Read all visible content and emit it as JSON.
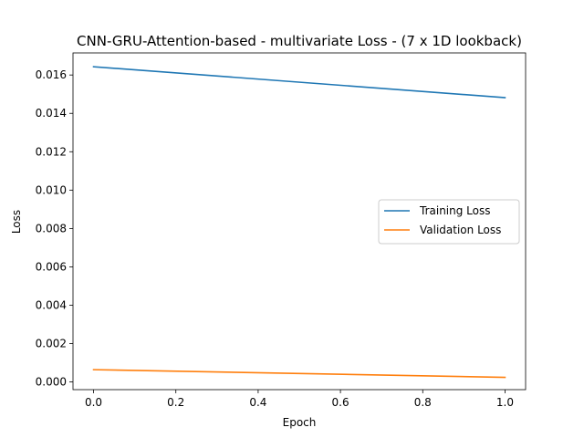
{
  "chart_data": {
    "type": "line",
    "title": "CNN-GRU-Attention-based - multivariate Loss - (7 x 1D lookback)",
    "xlabel": "Epoch",
    "ylabel": "Loss",
    "x": [
      0.0,
      1.0
    ],
    "xlim": [
      -0.05,
      1.05
    ],
    "ylim": [
      -0.0004,
      0.01715
    ],
    "xticks": [
      0.0,
      0.2,
      0.4,
      0.6,
      0.8,
      1.0
    ],
    "xtick_labels": [
      "0.0",
      "0.2",
      "0.4",
      "0.6",
      "0.8",
      "1.0"
    ],
    "yticks": [
      0.0,
      0.002,
      0.004,
      0.006,
      0.008,
      0.01,
      0.012,
      0.014,
      0.016
    ],
    "ytick_labels": [
      "0.000",
      "0.002",
      "0.004",
      "0.006",
      "0.008",
      "0.010",
      "0.012",
      "0.014",
      "0.016"
    ],
    "grid": false,
    "legend_position": "center-right",
    "series": [
      {
        "name": "Training Loss",
        "values": [
          0.01643,
          0.01482
        ],
        "color": "#1f77b4"
      },
      {
        "name": "Validation Loss",
        "values": [
          0.00064,
          0.00024
        ],
        "color": "#ff7f0e"
      }
    ]
  }
}
